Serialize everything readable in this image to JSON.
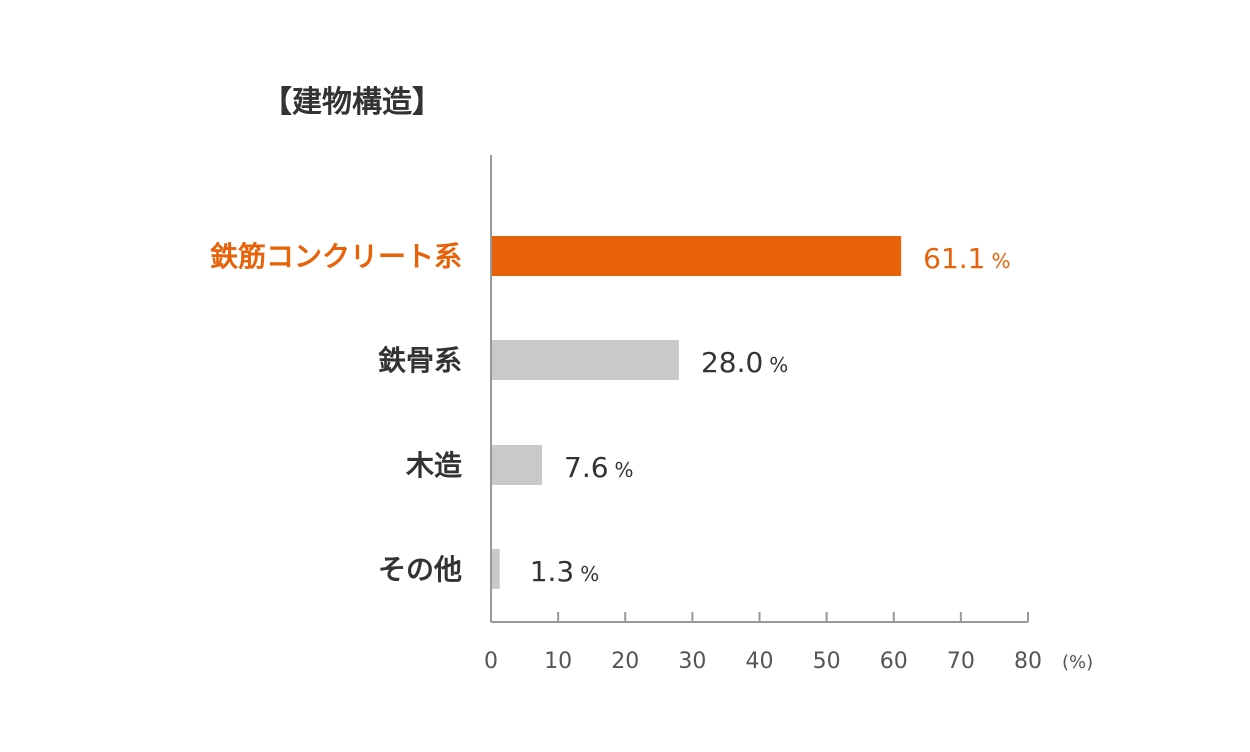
{
  "chart_data": {
    "type": "bar",
    "orientation": "horizontal",
    "title": "【建物構造】",
    "categories": [
      "鉄筋コンクリート系",
      "鉄骨系",
      "木造",
      "その他"
    ],
    "values": [
      61.1,
      28.0,
      7.6,
      1.3
    ],
    "value_labels": [
      "61.1",
      "28.0",
      "7.6",
      "1.3"
    ],
    "value_unit": "%",
    "highlight_index": 0,
    "xlim": [
      0,
      80
    ],
    "xticks": [
      "0",
      "10",
      "20",
      "30",
      "40",
      "50",
      "60",
      "70",
      "80"
    ],
    "xlabel": "(%)",
    "grid": false,
    "colors": {
      "highlight": "#E8620A",
      "default_bar": "#C8C9C9",
      "highlight_text": "#E8620A",
      "text": "#333333",
      "axis": "#999999"
    }
  }
}
